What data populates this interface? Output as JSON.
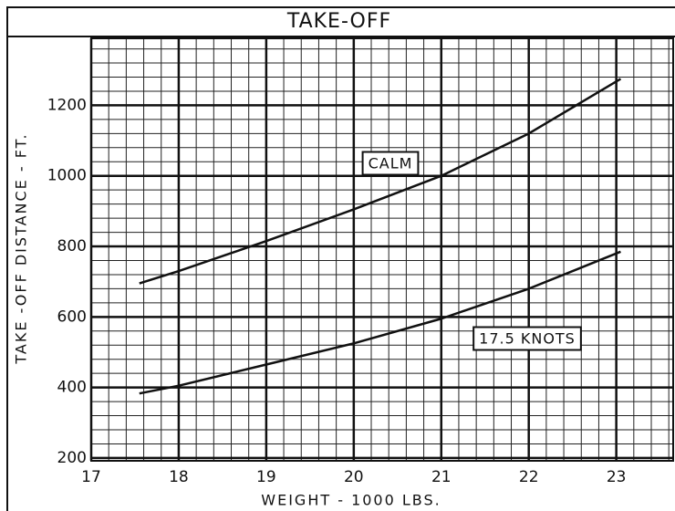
{
  "chart_data": {
    "type": "line",
    "title": "TAKE-OFF",
    "x_label": "WEIGHT - 1000 LBS.",
    "y_label": "TAKE -OFF DISTANCE - FT.",
    "xlim": [
      17,
      23.65
    ],
    "xticks": [
      17,
      18,
      19,
      20,
      21,
      22,
      23
    ],
    "ylim": [
      192,
      1390
    ],
    "yticks": [
      200,
      400,
      600,
      800,
      1000,
      1200
    ],
    "grid": true,
    "series": [
      {
        "name": "CALM",
        "color": "#111111",
        "x": [
          17.55,
          18,
          19,
          20,
          21,
          22,
          23.05
        ],
        "values": [
          695,
          730,
          815,
          905,
          1000,
          1120,
          1275
        ]
      },
      {
        "name": "17.5 KNOTS",
        "color": "#111111",
        "x": [
          17.55,
          18,
          19,
          20,
          21,
          22,
          23.05
        ],
        "values": [
          383,
          405,
          465,
          525,
          595,
          680,
          785
        ]
      }
    ]
  }
}
